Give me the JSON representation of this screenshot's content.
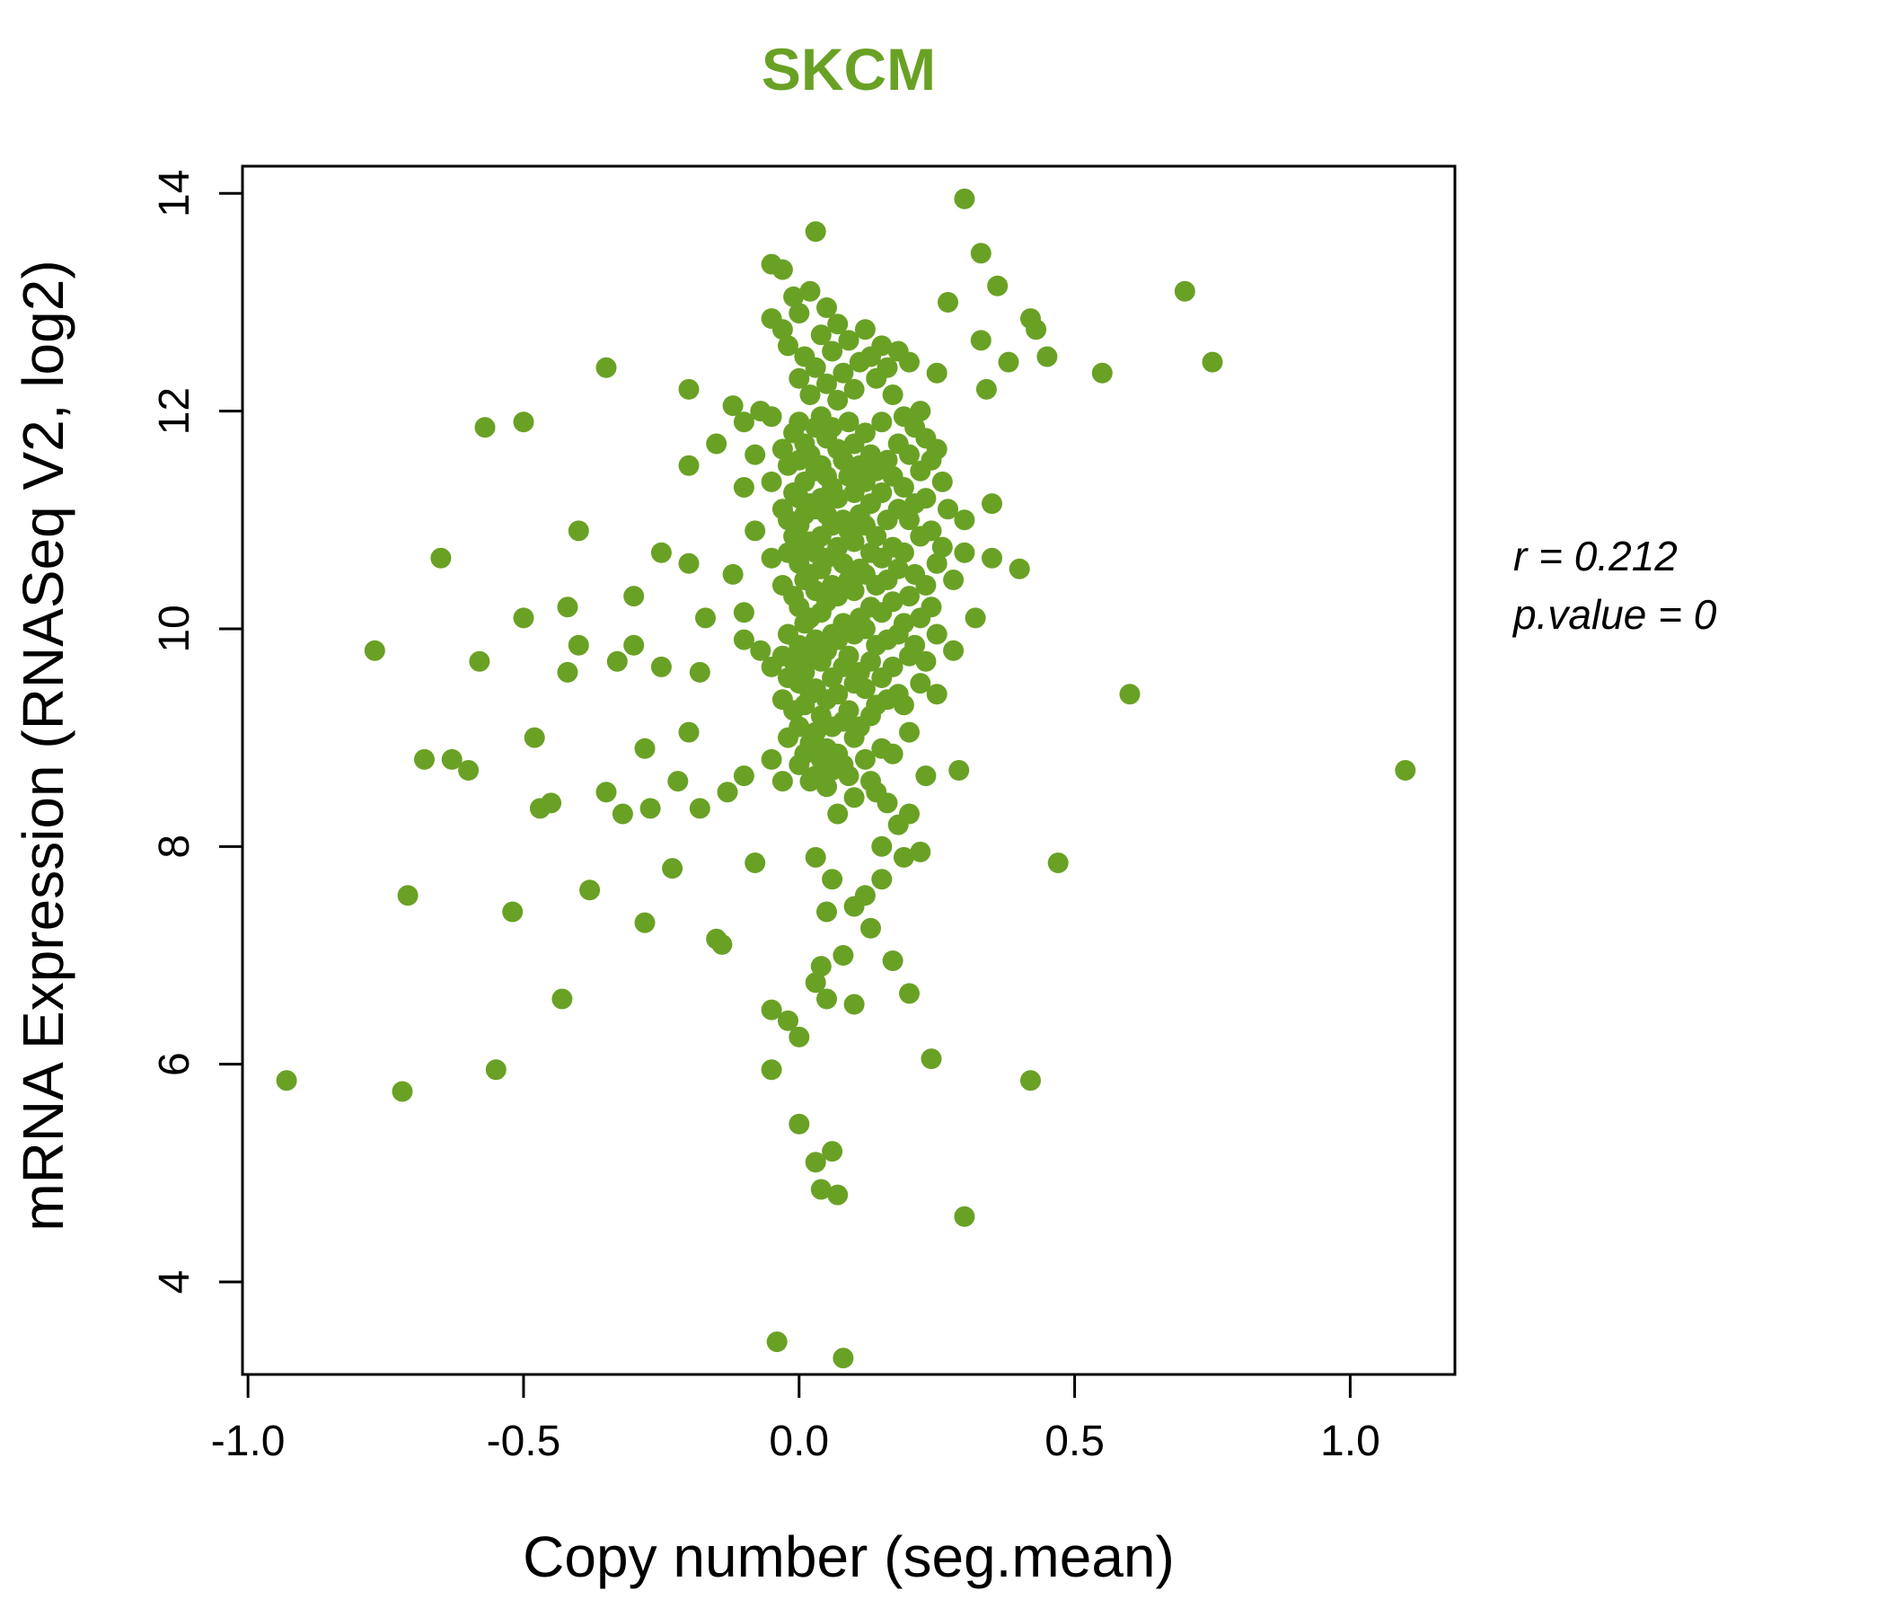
{
  "colors": {
    "accent_green": "#69a125",
    "axis_black": "#000000",
    "background": "#ffffff"
  },
  "annotation": {
    "line1": "r = 0.212",
    "line2": "p.value = 0"
  },
  "chart_data": {
    "type": "scatter",
    "title": "SKCM",
    "xlabel": "Copy number (seg.mean)",
    "ylabel": "mRNA Expression (RNASeq V2, log2)",
    "xlim": [
      -1.01,
      1.19
    ],
    "ylim": [
      3.15,
      14.25
    ],
    "x_ticks": [
      "-1.0",
      "-0.5",
      "0.0",
      "0.5",
      "1.0"
    ],
    "y_ticks": [
      "4",
      "6",
      "8",
      "10",
      "12",
      "14"
    ],
    "grid": false,
    "legend": "none",
    "point_color": "#69a125",
    "correlation_r": 0.212,
    "p_value": 0,
    "points": [
      [
        -0.93,
        5.85
      ],
      [
        -0.77,
        9.8
      ],
      [
        -0.72,
        5.75
      ],
      [
        -0.71,
        7.55
      ],
      [
        -0.68,
        8.8
      ],
      [
        -0.63,
        8.8
      ],
      [
        -0.65,
        10.65
      ],
      [
        -0.6,
        8.7
      ],
      [
        -0.58,
        9.7
      ],
      [
        -0.57,
        11.85
      ],
      [
        -0.55,
        5.95
      ],
      [
        -0.52,
        7.4
      ],
      [
        -0.5,
        11.9
      ],
      [
        -0.5,
        10.1
      ],
      [
        -0.48,
        9.0
      ],
      [
        -0.47,
        8.35
      ],
      [
        -0.45,
        8.4
      ],
      [
        -0.43,
        6.6
      ],
      [
        -0.42,
        9.6
      ],
      [
        -0.42,
        10.2
      ],
      [
        -0.4,
        9.85
      ],
      [
        -0.4,
        10.9
      ],
      [
        -0.38,
        7.6
      ],
      [
        -0.35,
        12.4
      ],
      [
        -0.35,
        8.5
      ],
      [
        -0.33,
        9.7
      ],
      [
        -0.32,
        8.3
      ],
      [
        -0.3,
        10.3
      ],
      [
        -0.3,
        9.85
      ],
      [
        -0.28,
        8.9
      ],
      [
        -0.28,
        7.3
      ],
      [
        -0.27,
        8.35
      ],
      [
        -0.25,
        10.7
      ],
      [
        -0.25,
        9.65
      ],
      [
        -0.23,
        7.8
      ],
      [
        -0.22,
        8.6
      ],
      [
        -0.2,
        12.2
      ],
      [
        -0.2,
        11.5
      ],
      [
        -0.2,
        10.6
      ],
      [
        -0.2,
        9.05
      ],
      [
        -0.18,
        9.6
      ],
      [
        -0.18,
        8.35
      ],
      [
        -0.17,
        10.1
      ],
      [
        -0.15,
        11.7
      ],
      [
        -0.15,
        7.15
      ],
      [
        -0.14,
        7.1
      ],
      [
        -0.13,
        8.5
      ],
      [
        -0.12,
        12.05
      ],
      [
        -0.12,
        10.5
      ],
      [
        -0.1,
        11.9
      ],
      [
        -0.1,
        11.3
      ],
      [
        -0.1,
        10.15
      ],
      [
        -0.1,
        9.9
      ],
      [
        -0.1,
        8.65
      ],
      [
        -0.08,
        11.6
      ],
      [
        -0.08,
        10.9
      ],
      [
        -0.08,
        7.85
      ],
      [
        -0.07,
        12.0
      ],
      [
        -0.07,
        9.8
      ],
      [
        -0.05,
        13.35
      ],
      [
        -0.05,
        12.85
      ],
      [
        -0.05,
        11.95
      ],
      [
        -0.05,
        11.35
      ],
      [
        -0.05,
        10.65
      ],
      [
        -0.05,
        9.65
      ],
      [
        -0.05,
        8.8
      ],
      [
        -0.05,
        6.5
      ],
      [
        -0.05,
        5.95
      ],
      [
        -0.04,
        3.45
      ],
      [
        -0.03,
        13.3
      ],
      [
        -0.03,
        12.75
      ],
      [
        -0.03,
        11.65
      ],
      [
        -0.03,
        11.1
      ],
      [
        -0.03,
        10.4
      ],
      [
        -0.03,
        9.75
      ],
      [
        -0.03,
        9.35
      ],
      [
        -0.03,
        8.6
      ],
      [
        -0.02,
        12.6
      ],
      [
        -0.02,
        11.5
      ],
      [
        -0.02,
        11.0
      ],
      [
        -0.02,
        10.7
      ],
      [
        -0.02,
        9.95
      ],
      [
        -0.02,
        9.55
      ],
      [
        -0.02,
        9.0
      ],
      [
        -0.02,
        6.4
      ],
      [
        -0.01,
        13.05
      ],
      [
        -0.01,
        11.8
      ],
      [
        -0.01,
        11.25
      ],
      [
        -0.01,
        10.85
      ],
      [
        -0.01,
        10.3
      ],
      [
        -0.01,
        9.7
      ],
      [
        -0.01,
        9.25
      ],
      [
        0.0,
        12.9
      ],
      [
        0.0,
        12.3
      ],
      [
        0.0,
        11.9
      ],
      [
        0.0,
        11.55
      ],
      [
        0.0,
        11.2
      ],
      [
        0.0,
        10.95
      ],
      [
        0.0,
        10.6
      ],
      [
        0.0,
        10.2
      ],
      [
        0.0,
        9.85
      ],
      [
        0.0,
        9.5
      ],
      [
        0.0,
        9.1
      ],
      [
        0.0,
        8.75
      ],
      [
        0.0,
        6.25
      ],
      [
        0.0,
        5.45
      ],
      [
        0.01,
        12.5
      ],
      [
        0.01,
        11.7
      ],
      [
        0.01,
        11.35
      ],
      [
        0.01,
        11.05
      ],
      [
        0.01,
        10.75
      ],
      [
        0.01,
        10.45
      ],
      [
        0.01,
        10.05
      ],
      [
        0.01,
        9.6
      ],
      [
        0.01,
        9.3
      ],
      [
        0.01,
        8.85
      ],
      [
        0.02,
        13.1
      ],
      [
        0.02,
        12.15
      ],
      [
        0.02,
        11.6
      ],
      [
        0.02,
        11.15
      ],
      [
        0.02,
        10.8
      ],
      [
        0.02,
        10.5
      ],
      [
        0.02,
        10.1
      ],
      [
        0.02,
        9.75
      ],
      [
        0.02,
        9.4
      ],
      [
        0.02,
        8.95
      ],
      [
        0.02,
        8.6
      ],
      [
        0.03,
        13.65
      ],
      [
        0.03,
        12.4
      ],
      [
        0.03,
        11.85
      ],
      [
        0.03,
        11.45
      ],
      [
        0.03,
        11.1
      ],
      [
        0.03,
        10.7
      ],
      [
        0.03,
        10.35
      ],
      [
        0.03,
        9.9
      ],
      [
        0.03,
        9.45
      ],
      [
        0.03,
        9.05
      ],
      [
        0.03,
        8.65
      ],
      [
        0.03,
        7.9
      ],
      [
        0.03,
        6.75
      ],
      [
        0.03,
        5.1
      ],
      [
        0.04,
        12.7
      ],
      [
        0.04,
        11.95
      ],
      [
        0.04,
        11.5
      ],
      [
        0.04,
        11.2
      ],
      [
        0.04,
        10.85
      ],
      [
        0.04,
        10.55
      ],
      [
        0.04,
        10.15
      ],
      [
        0.04,
        9.7
      ],
      [
        0.04,
        9.2
      ],
      [
        0.04,
        8.8
      ],
      [
        0.04,
        6.9
      ],
      [
        0.04,
        4.85
      ],
      [
        0.05,
        12.95
      ],
      [
        0.05,
        12.25
      ],
      [
        0.05,
        11.75
      ],
      [
        0.05,
        11.4
      ],
      [
        0.05,
        11.05
      ],
      [
        0.05,
        10.65
      ],
      [
        0.05,
        10.25
      ],
      [
        0.05,
        9.8
      ],
      [
        0.05,
        9.35
      ],
      [
        0.05,
        8.9
      ],
      [
        0.05,
        8.55
      ],
      [
        0.05,
        7.4
      ],
      [
        0.05,
        6.6
      ],
      [
        0.06,
        12.55
      ],
      [
        0.06,
        11.85
      ],
      [
        0.06,
        11.3
      ],
      [
        0.06,
        10.95
      ],
      [
        0.06,
        10.4
      ],
      [
        0.06,
        9.95
      ],
      [
        0.06,
        9.55
      ],
      [
        0.06,
        9.1
      ],
      [
        0.06,
        8.7
      ],
      [
        0.06,
        7.7
      ],
      [
        0.06,
        5.2
      ],
      [
        0.07,
        12.8
      ],
      [
        0.07,
        12.1
      ],
      [
        0.07,
        11.65
      ],
      [
        0.07,
        11.2
      ],
      [
        0.07,
        10.75
      ],
      [
        0.07,
        10.3
      ],
      [
        0.07,
        9.9
      ],
      [
        0.07,
        9.4
      ],
      [
        0.07,
        8.85
      ],
      [
        0.07,
        8.3
      ],
      [
        0.07,
        4.8
      ],
      [
        0.08,
        12.35
      ],
      [
        0.08,
        11.55
      ],
      [
        0.08,
        11.0
      ],
      [
        0.08,
        10.6
      ],
      [
        0.08,
        10.05
      ],
      [
        0.08,
        9.65
      ],
      [
        0.08,
        9.15
      ],
      [
        0.08,
        8.75
      ],
      [
        0.08,
        7.0
      ],
      [
        0.08,
        3.3
      ],
      [
        0.09,
        12.65
      ],
      [
        0.09,
        11.9
      ],
      [
        0.09,
        11.4
      ],
      [
        0.09,
        10.9
      ],
      [
        0.09,
        10.45
      ],
      [
        0.09,
        9.75
      ],
      [
        0.09,
        9.25
      ],
      [
        0.09,
        8.65
      ],
      [
        0.1,
        12.2
      ],
      [
        0.1,
        11.7
      ],
      [
        0.1,
        11.25
      ],
      [
        0.1,
        10.8
      ],
      [
        0.1,
        10.35
      ],
      [
        0.1,
        9.95
      ],
      [
        0.1,
        9.5
      ],
      [
        0.1,
        9.0
      ],
      [
        0.1,
        8.45
      ],
      [
        0.1,
        7.45
      ],
      [
        0.1,
        6.55
      ],
      [
        0.11,
        12.45
      ],
      [
        0.11,
        11.5
      ],
      [
        0.11,
        11.05
      ],
      [
        0.11,
        10.55
      ],
      [
        0.11,
        10.1
      ],
      [
        0.11,
        9.6
      ],
      [
        0.11,
        9.1
      ],
      [
        0.12,
        12.75
      ],
      [
        0.12,
        11.8
      ],
      [
        0.12,
        11.35
      ],
      [
        0.12,
        10.95
      ],
      [
        0.12,
        10.5
      ],
      [
        0.12,
        10.0
      ],
      [
        0.12,
        9.45
      ],
      [
        0.12,
        8.8
      ],
      [
        0.12,
        7.55
      ],
      [
        0.13,
        12.5
      ],
      [
        0.13,
        11.6
      ],
      [
        0.13,
        11.15
      ],
      [
        0.13,
        10.7
      ],
      [
        0.13,
        10.2
      ],
      [
        0.13,
        9.7
      ],
      [
        0.13,
        9.2
      ],
      [
        0.13,
        8.6
      ],
      [
        0.13,
        7.25
      ],
      [
        0.14,
        12.3
      ],
      [
        0.14,
        11.45
      ],
      [
        0.14,
        10.85
      ],
      [
        0.14,
        10.4
      ],
      [
        0.14,
        9.85
      ],
      [
        0.14,
        9.3
      ],
      [
        0.14,
        8.5
      ],
      [
        0.15,
        12.6
      ],
      [
        0.15,
        11.9
      ],
      [
        0.15,
        11.25
      ],
      [
        0.15,
        10.65
      ],
      [
        0.15,
        10.15
      ],
      [
        0.15,
        9.55
      ],
      [
        0.15,
        8.9
      ],
      [
        0.15,
        8.0
      ],
      [
        0.15,
        7.7
      ],
      [
        0.16,
        12.4
      ],
      [
        0.16,
        11.55
      ],
      [
        0.16,
        11.0
      ],
      [
        0.16,
        10.45
      ],
      [
        0.16,
        9.9
      ],
      [
        0.16,
        9.35
      ],
      [
        0.16,
        8.4
      ],
      [
        0.17,
        12.15
      ],
      [
        0.17,
        11.4
      ],
      [
        0.17,
        10.75
      ],
      [
        0.17,
        10.25
      ],
      [
        0.17,
        9.65
      ],
      [
        0.17,
        8.85
      ],
      [
        0.17,
        6.95
      ],
      [
        0.18,
        12.55
      ],
      [
        0.18,
        11.7
      ],
      [
        0.18,
        11.1
      ],
      [
        0.18,
        10.55
      ],
      [
        0.18,
        9.95
      ],
      [
        0.18,
        9.4
      ],
      [
        0.18,
        8.2
      ],
      [
        0.19,
        11.95
      ],
      [
        0.19,
        11.3
      ],
      [
        0.19,
        10.7
      ],
      [
        0.19,
        10.05
      ],
      [
        0.19,
        9.3
      ],
      [
        0.19,
        7.9
      ],
      [
        0.2,
        12.45
      ],
      [
        0.2,
        11.6
      ],
      [
        0.2,
        11.0
      ],
      [
        0.2,
        10.3
      ],
      [
        0.2,
        9.75
      ],
      [
        0.2,
        9.05
      ],
      [
        0.2,
        8.3
      ],
      [
        0.2,
        6.65
      ],
      [
        0.21,
        11.85
      ],
      [
        0.21,
        11.15
      ],
      [
        0.21,
        10.5
      ],
      [
        0.21,
        9.85
      ],
      [
        0.22,
        12.0
      ],
      [
        0.22,
        11.45
      ],
      [
        0.22,
        10.85
      ],
      [
        0.22,
        10.1
      ],
      [
        0.22,
        9.5
      ],
      [
        0.22,
        7.95
      ],
      [
        0.23,
        11.75
      ],
      [
        0.23,
        11.2
      ],
      [
        0.23,
        10.4
      ],
      [
        0.23,
        9.7
      ],
      [
        0.23,
        8.65
      ],
      [
        0.24,
        11.55
      ],
      [
        0.24,
        10.9
      ],
      [
        0.24,
        10.2
      ],
      [
        0.24,
        6.05
      ],
      [
        0.25,
        12.35
      ],
      [
        0.25,
        11.65
      ],
      [
        0.25,
        10.6
      ],
      [
        0.25,
        9.95
      ],
      [
        0.25,
        9.4
      ],
      [
        0.26,
        11.35
      ],
      [
        0.26,
        10.75
      ],
      [
        0.27,
        13.0
      ],
      [
        0.27,
        11.1
      ],
      [
        0.28,
        10.45
      ],
      [
        0.28,
        9.8
      ],
      [
        0.29,
        8.7
      ],
      [
        0.3,
        13.95
      ],
      [
        0.3,
        11.0
      ],
      [
        0.3,
        10.7
      ],
      [
        0.3,
        4.6
      ],
      [
        0.32,
        10.1
      ],
      [
        0.33,
        13.45
      ],
      [
        0.33,
        12.65
      ],
      [
        0.34,
        12.2
      ],
      [
        0.35,
        11.15
      ],
      [
        0.35,
        10.65
      ],
      [
        0.36,
        13.15
      ],
      [
        0.38,
        12.45
      ],
      [
        0.4,
        10.55
      ],
      [
        0.42,
        12.85
      ],
      [
        0.42,
        5.85
      ],
      [
        0.43,
        12.75
      ],
      [
        0.45,
        12.5
      ],
      [
        0.47,
        7.85
      ],
      [
        0.55,
        12.35
      ],
      [
        0.6,
        9.4
      ],
      [
        0.7,
        13.1
      ],
      [
        0.75,
        12.45
      ],
      [
        1.1,
        8.7
      ]
    ]
  }
}
